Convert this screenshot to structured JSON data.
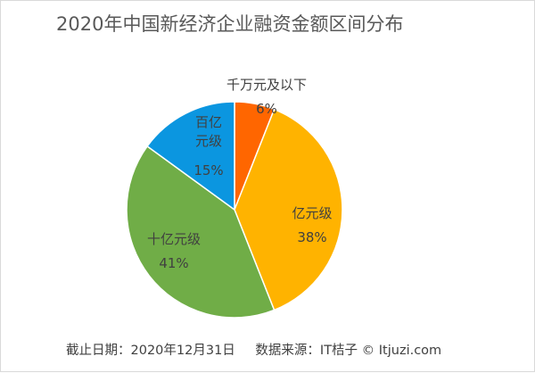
{
  "chart_data": {
    "type": "pie",
    "title": "2020年中国新经济企业融资金额区间分布",
    "slices": [
      {
        "name": "千万元及以下",
        "label_lines": [
          "千万元及以下"
        ],
        "value": 6,
        "value_label": "6%",
        "color": "#ff6600"
      },
      {
        "name": "亿元级",
        "label_lines": [
          "亿元级"
        ],
        "value": 38,
        "value_label": "38%",
        "color": "#ffb300"
      },
      {
        "name": "十亿元级",
        "label_lines": [
          "十亿元级"
        ],
        "value": 41,
        "value_label": "41%",
        "color": "#70ad47"
      },
      {
        "name": "百亿元级",
        "label_lines": [
          "百亿",
          "元级"
        ],
        "value": 15,
        "value_label": "15%",
        "color": "#0b96e0"
      }
    ],
    "start_angle_deg": 0,
    "direction": "clockwise",
    "legend": "none"
  },
  "footer": {
    "date_note": "截止日期：2020年12月31日",
    "source_note": "数据来源：IT桔子 © Itjuzi.com"
  }
}
